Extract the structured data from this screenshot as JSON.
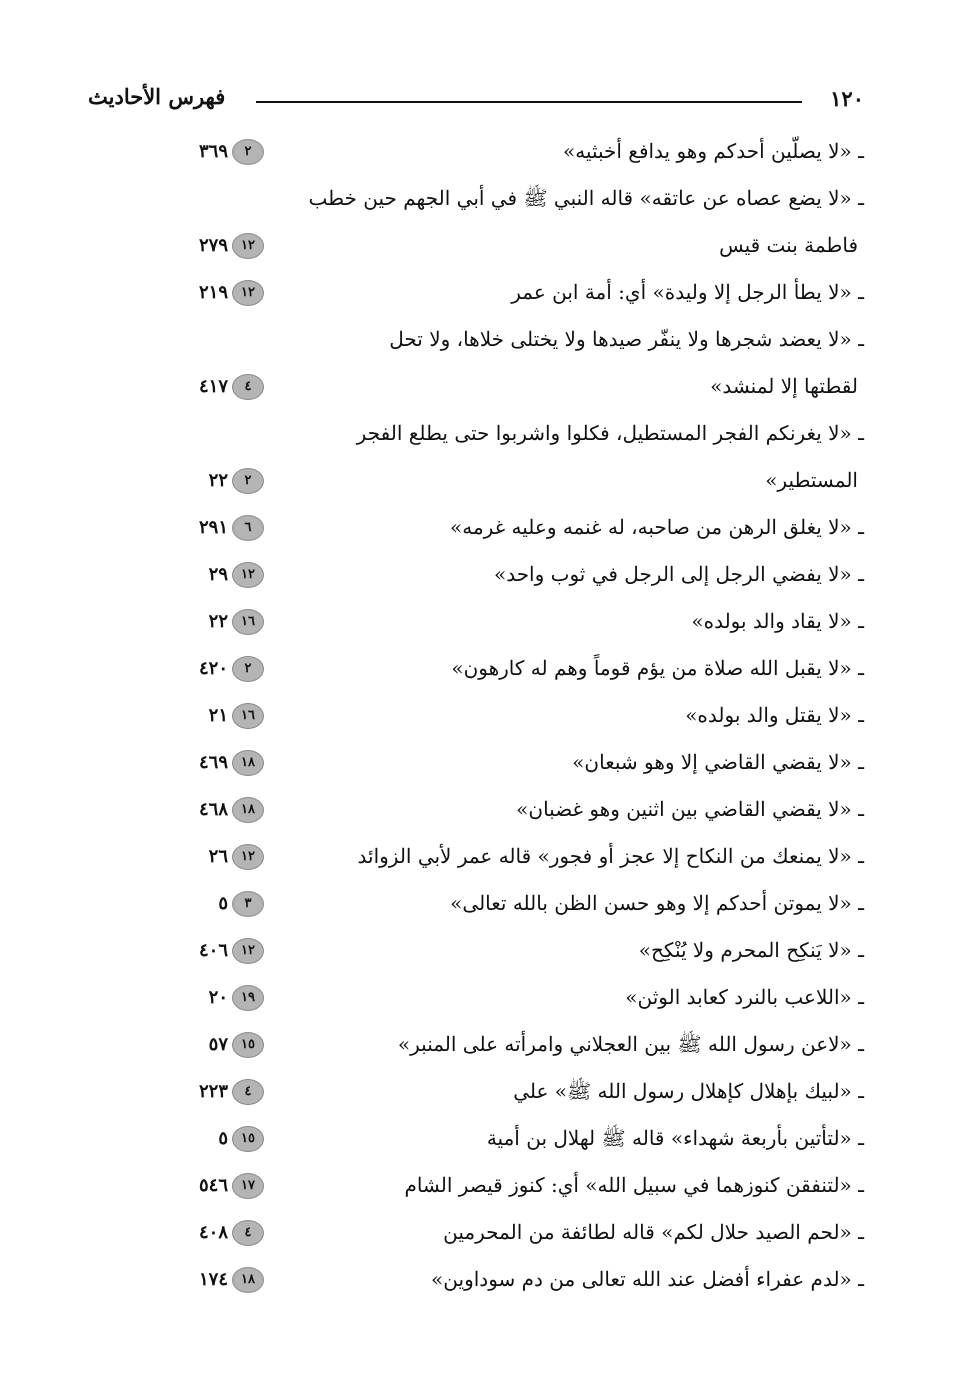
{
  "header": {
    "page_number": "١٢٠",
    "title": "فهرس الأحاديث"
  },
  "entries": [
    {
      "lines": [
        "ـ «لا يصلّين أحدكم وهو يدافع أخبثيه»"
      ],
      "volume": "٢",
      "page": "٣٦٩"
    },
    {
      "lines": [
        "ـ «لا يضع عصاه عن عاتقه» قاله النبي ﷺ في أبي الجهم حين خطب",
        "فاطمة بنت قيس"
      ],
      "volume": "١٢",
      "page": "٢٧٩"
    },
    {
      "lines": [
        "ـ «لا يطأ الرجل إلا وليدة» أي: أمة    ابن عمر"
      ],
      "volume": "١٢",
      "page": "٢١٩"
    },
    {
      "lines": [
        "ـ «لا يعضد شجرها ولا ينفّر صيدها ولا يختلى خلاها، ولا تحل",
        "لقطتها إلا لمنشد»"
      ],
      "volume": "٤",
      "page": "٤١٧"
    },
    {
      "lines": [
        "ـ «لا يغرنكم الفجر المستطيل، فكلوا واشربوا حتى يطلع الفجر",
        "المستطير»"
      ],
      "volume": "٢",
      "page": "٢٢"
    },
    {
      "lines": [
        "ـ «لا يغلق الرهن من صاحبه، له غنمه وعليه غرمه»"
      ],
      "volume": "٦",
      "page": "٢٩١"
    },
    {
      "lines": [
        "ـ «لا يفضي الرجل إلى الرجل في ثوب واحد»"
      ],
      "volume": "١٢",
      "page": "٢٩"
    },
    {
      "lines": [
        "ـ «لا يقاد والد بولده»"
      ],
      "volume": "١٦",
      "page": "٢٢"
    },
    {
      "lines": [
        "ـ «لا يقبل الله صلاة من يؤم قوماً وهم له كارهون»"
      ],
      "volume": "٢",
      "page": "٤٢٠"
    },
    {
      "lines": [
        "ـ «لا يقتل والد بولده»"
      ],
      "volume": "١٦",
      "page": "٢١"
    },
    {
      "lines": [
        "ـ «لا يقضي القاضي إلا وهو شبعان»"
      ],
      "volume": "١٨",
      "page": "٤٦٩"
    },
    {
      "lines": [
        "ـ «لا يقضي القاضي بين اثنين وهو غضبان»"
      ],
      "volume": "١٨",
      "page": "٤٦٨"
    },
    {
      "lines": [
        "ـ «لا يمنعك من النكاح إلا عجز أو فجور» قاله عمر لأبي الزوائد"
      ],
      "volume": "١٢",
      "page": "٢٦"
    },
    {
      "lines": [
        "ـ «لا يموتن أحدكم إلا وهو حسن الظن بالله تعالى»"
      ],
      "volume": "٣",
      "page": "٥"
    },
    {
      "lines": [
        "ـ «لا يَنكِح المحرم ولا يُنْكِح»"
      ],
      "volume": "١٢",
      "page": "٤٠٦"
    },
    {
      "lines": [
        "ـ «اللاعب بالنرد كعابد الوثن»"
      ],
      "volume": "١٩",
      "page": "٢٠"
    },
    {
      "lines": [
        "ـ «لاعن رسول الله ﷺ بين العجلاني وامرأته على المنبر»"
      ],
      "volume": "١٥",
      "page": "٥٧"
    },
    {
      "lines": [
        "ـ «لبيك بإهلال كإهلال رسول الله ﷺ» علي"
      ],
      "volume": "٤",
      "page": "٢٢٣"
    },
    {
      "lines": [
        "ـ «لتأتين بأربعة شهداء» قاله ﷺ لهلال بن أمية"
      ],
      "volume": "١٥",
      "page": "٥"
    },
    {
      "lines": [
        "ـ «لتنفقن كنوزهما في سبيل الله» أي: كنوز قيصر الشام"
      ],
      "volume": "١٧",
      "page": "٥٤٦"
    },
    {
      "lines": [
        "ـ «لحم الصيد حلال لكم» قاله لطائفة من المحرمين"
      ],
      "volume": "٤",
      "page": "٤٠٨"
    },
    {
      "lines": [
        "ـ «لدم عفراء أفضل عند الله تعالى من دم سوداوين»"
      ],
      "volume": "١٨",
      "page": "١٧٤"
    }
  ]
}
